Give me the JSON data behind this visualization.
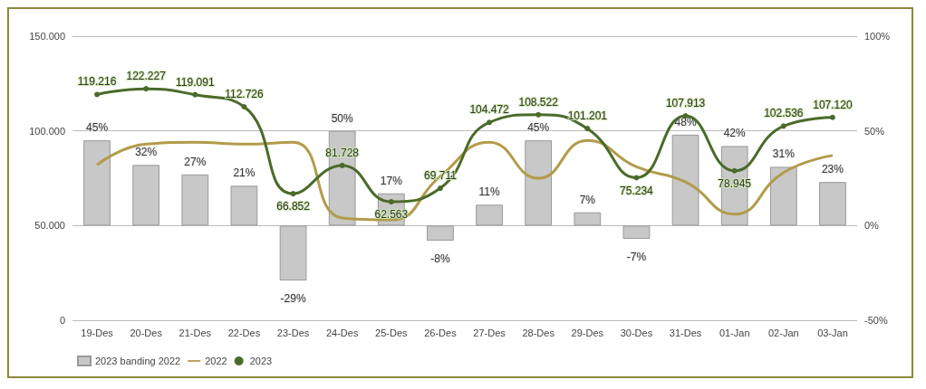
{
  "chart_data": {
    "type": "bar",
    "categories": [
      "19-Des",
      "20-Des",
      "21-Des",
      "22-Des",
      "23-Des",
      "24-Des",
      "25-Des",
      "26-Des",
      "27-Des",
      "28-Des",
      "29-Des",
      "30-Des",
      "31-Des",
      "01-Jan",
      "02-Jan",
      "03-Jan"
    ],
    "series": [
      {
        "name": "2023 banding 2022",
        "axis": "y2",
        "color": "#c8c8c8",
        "values": [
          45,
          32,
          27,
          21,
          -29,
          50,
          17,
          -8,
          11,
          45,
          7,
          -7,
          48,
          42,
          31,
          23
        ],
        "value_labels": [
          "45%",
          "32%",
          "27%",
          "21%",
          "-29%",
          "50%",
          "17%",
          "-8%",
          "11%",
          "45%",
          "7%",
          "-7%",
          "48%",
          "42%",
          "31%",
          "23%"
        ]
      },
      {
        "name": "2022",
        "type": "line",
        "color": "#b39b4a",
        "marker": "none",
        "values": [
          82000,
          93000,
          94000,
          93000,
          94000,
          54000,
          53000,
          76000,
          94000,
          75000,
          95000,
          81000,
          73000,
          56000,
          78000,
          87000
        ]
      },
      {
        "name": "2023",
        "type": "line",
        "color": "#4a6b2a",
        "marker": "circle",
        "values": [
          119216,
          122227,
          119091,
          112726,
          66852,
          81728,
          62563,
          69711,
          104472,
          108522,
          101201,
          75234,
          107913,
          78945,
          102536,
          107120
        ],
        "value_labels": [
          "119.216",
          "122.227",
          "119.091",
          "112.726",
          "66.852",
          "81.728",
          "62.563",
          "69.711",
          "104.472",
          "108.522",
          "101.201",
          "75.234",
          "107.913",
          "78.945",
          "102.536",
          "107.120"
        ]
      }
    ],
    "ylim": [
      0,
      150000
    ],
    "yticks": [
      {
        "value": 0,
        "label": "0"
      },
      {
        "value": 50000,
        "label": "50.000"
      },
      {
        "value": 100000,
        "label": "100.000"
      },
      {
        "value": 150000,
        "label": "150.000"
      }
    ],
    "y2lim": [
      -50,
      100
    ],
    "y2ticks": [
      {
        "value": -50,
        "label": "-50%"
      },
      {
        "value": 0,
        "label": "0%"
      },
      {
        "value": 50,
        "label": "50%"
      },
      {
        "value": 100,
        "label": "100%"
      }
    ],
    "grid": "y",
    "legend": "bottom left"
  }
}
